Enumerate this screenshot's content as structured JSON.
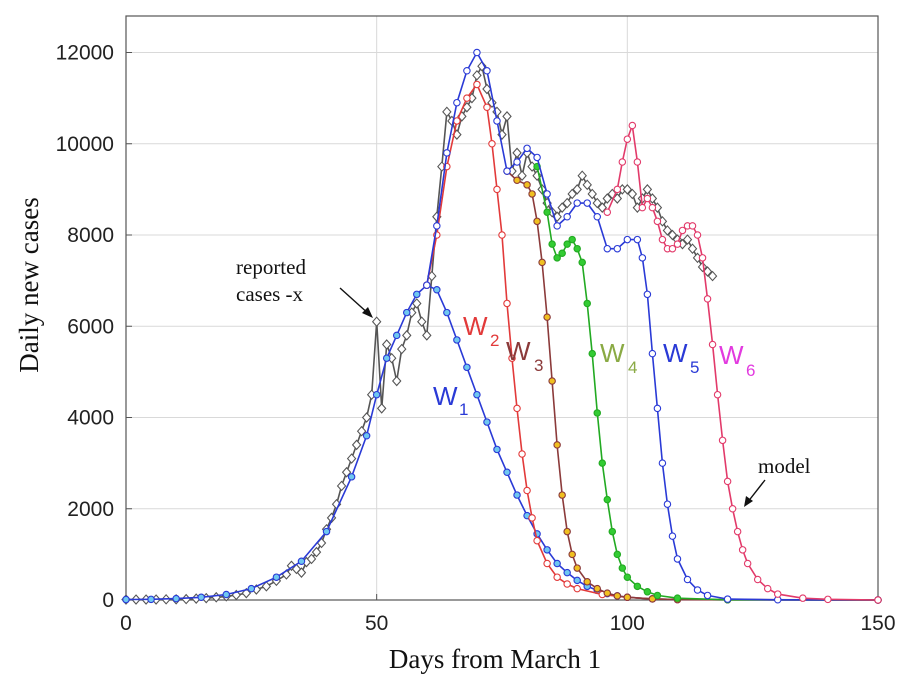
{
  "chart_data": {
    "type": "line",
    "title": "",
    "xlabel": "Days from March 1",
    "ylabel": "Daily new cases",
    "xlim": [
      0,
      150
    ],
    "ylim": [
      0,
      12800
    ],
    "xticks": [
      0,
      50,
      100,
      150
    ],
    "yticks": [
      0,
      2000,
      4000,
      6000,
      8000,
      10000,
      12000
    ],
    "grid": true,
    "colors": {
      "W1": "#2a3ad6",
      "W2": "#e23a3a",
      "W3": "#8b3a3a",
      "W4": "#22aa22",
      "W5": "#2a3ad6",
      "W6": "#e23a6a",
      "reported": "#555555",
      "grid": "#d9d9d9",
      "axis": "#555555"
    },
    "reported": {
      "marker": "diamond",
      "points": [
        [
          0,
          10
        ],
        [
          2,
          10
        ],
        [
          4,
          10
        ],
        [
          6,
          10
        ],
        [
          8,
          15
        ],
        [
          10,
          15
        ],
        [
          12,
          20
        ],
        [
          14,
          30
        ],
        [
          16,
          40
        ],
        [
          18,
          60
        ],
        [
          20,
          80
        ],
        [
          22,
          110
        ],
        [
          24,
          150
        ],
        [
          26,
          230
        ],
        [
          28,
          300
        ],
        [
          30,
          420
        ],
        [
          32,
          560
        ],
        [
          33,
          750
        ],
        [
          34,
          680
        ],
        [
          35,
          600
        ],
        [
          36,
          830
        ],
        [
          37,
          900
        ],
        [
          38,
          1050
        ],
        [
          39,
          1250
        ],
        [
          40,
          1550
        ],
        [
          41,
          1800
        ],
        [
          42,
          2100
        ],
        [
          43,
          2500
        ],
        [
          44,
          2800
        ],
        [
          45,
          3100
        ],
        [
          46,
          3400
        ],
        [
          47,
          3700
        ],
        [
          48,
          4000
        ],
        [
          49,
          4500
        ],
        [
          50,
          6100
        ],
        [
          51,
          4200
        ],
        [
          52,
          5600
        ],
        [
          53,
          5300
        ],
        [
          54,
          4800
        ],
        [
          55,
          5500
        ],
        [
          56,
          5800
        ],
        [
          57,
          6300
        ],
        [
          58,
          6500
        ],
        [
          59,
          6100
        ],
        [
          60,
          5800
        ],
        [
          61,
          7100
        ],
        [
          62,
          8400
        ],
        [
          63,
          9500
        ],
        [
          64,
          10700
        ],
        [
          65,
          10500
        ],
        [
          66,
          10200
        ],
        [
          67,
          10600
        ],
        [
          68,
          10800
        ],
        [
          69,
          11000
        ],
        [
          70,
          11500
        ],
        [
          71,
          11700
        ],
        [
          72,
          11200
        ],
        [
          73,
          10900
        ],
        [
          74,
          10700
        ],
        [
          75,
          10200
        ],
        [
          76,
          10600
        ],
        [
          77,
          9400
        ],
        [
          78,
          9800
        ],
        [
          79,
          9300
        ],
        [
          80,
          9800
        ],
        [
          81,
          9500
        ],
        [
          82,
          9300
        ],
        [
          83,
          9000
        ],
        [
          84,
          8700
        ],
        [
          85,
          8500
        ],
        [
          86,
          8400
        ],
        [
          87,
          8600
        ],
        [
          88,
          8700
        ],
        [
          89,
          8900
        ],
        [
          90,
          9000
        ],
        [
          91,
          9300
        ],
        [
          92,
          9100
        ],
        [
          93,
          8900
        ],
        [
          94,
          8700
        ],
        [
          95,
          8600
        ],
        [
          96,
          8800
        ],
        [
          97,
          8900
        ],
        [
          98,
          8800
        ],
        [
          99,
          9000
        ],
        [
          100,
          9000
        ],
        [
          101,
          8900
        ],
        [
          102,
          8600
        ],
        [
          103,
          8800
        ],
        [
          104,
          9000
        ],
        [
          105,
          8800
        ],
        [
          106,
          8600
        ],
        [
          107,
          8300
        ],
        [
          108,
          8100
        ],
        [
          109,
          8000
        ],
        [
          110,
          7900
        ],
        [
          111,
          7800
        ],
        [
          112,
          7900
        ],
        [
          113,
          7700
        ],
        [
          114,
          7500
        ],
        [
          115,
          7300
        ],
        [
          116,
          7200
        ],
        [
          117,
          7100
        ]
      ]
    },
    "series": [
      {
        "name": "W1",
        "points": [
          [
            0,
            10
          ],
          [
            5,
            15
          ],
          [
            10,
            30
          ],
          [
            15,
            60
          ],
          [
            20,
            120
          ],
          [
            25,
            250
          ],
          [
            30,
            500
          ],
          [
            35,
            850
          ],
          [
            40,
            1500
          ],
          [
            45,
            2700
          ],
          [
            48,
            3600
          ],
          [
            50,
            4500
          ],
          [
            52,
            5300
          ],
          [
            54,
            5800
          ],
          [
            56,
            6300
          ],
          [
            58,
            6700
          ],
          [
            60,
            6900
          ],
          [
            62,
            6800
          ],
          [
            64,
            6300
          ],
          [
            66,
            5700
          ],
          [
            68,
            5100
          ],
          [
            70,
            4500
          ],
          [
            72,
            3900
          ],
          [
            74,
            3300
          ],
          [
            76,
            2800
          ],
          [
            78,
            2300
          ],
          [
            80,
            1850
          ],
          [
            82,
            1450
          ],
          [
            84,
            1100
          ],
          [
            86,
            800
          ],
          [
            88,
            600
          ],
          [
            90,
            430
          ],
          [
            92,
            300
          ],
          [
            94,
            210
          ],
          [
            96,
            140
          ],
          [
            98,
            90
          ],
          [
            100,
            60
          ],
          [
            105,
            25
          ],
          [
            110,
            10
          ],
          [
            120,
            5
          ],
          [
            150,
            0
          ]
        ]
      },
      {
        "name": "W2",
        "points": [
          [
            60,
            6900
          ],
          [
            62,
            8000
          ],
          [
            64,
            9500
          ],
          [
            66,
            10500
          ],
          [
            68,
            11000
          ],
          [
            70,
            11300
          ],
          [
            72,
            10800
          ],
          [
            73,
            10000
          ],
          [
            74,
            9000
          ],
          [
            75,
            8000
          ],
          [
            76,
            6500
          ],
          [
            77,
            5300
          ],
          [
            78,
            4200
          ],
          [
            79,
            3200
          ],
          [
            80,
            2400
          ],
          [
            81,
            1800
          ],
          [
            82,
            1300
          ],
          [
            84,
            800
          ],
          [
            86,
            500
          ],
          [
            88,
            350
          ],
          [
            90,
            250
          ],
          [
            95,
            120
          ],
          [
            100,
            60
          ],
          [
            105,
            25
          ],
          [
            110,
            10
          ],
          [
            120,
            5
          ],
          [
            150,
            0
          ]
        ]
      },
      {
        "name": "W3",
        "points": [
          [
            76,
            9400
          ],
          [
            78,
            9200
          ],
          [
            80,
            9100
          ],
          [
            81,
            8900
          ],
          [
            82,
            8300
          ],
          [
            83,
            7400
          ],
          [
            84,
            6200
          ],
          [
            85,
            4800
          ],
          [
            86,
            3400
          ],
          [
            87,
            2300
          ],
          [
            88,
            1500
          ],
          [
            89,
            1000
          ],
          [
            90,
            700
          ],
          [
            92,
            400
          ],
          [
            94,
            250
          ],
          [
            96,
            150
          ],
          [
            98,
            90
          ],
          [
            100,
            60
          ],
          [
            105,
            25
          ],
          [
            110,
            10
          ],
          [
            150,
            0
          ]
        ]
      },
      {
        "name": "W4",
        "points": [
          [
            82,
            9500
          ],
          [
            84,
            8500
          ],
          [
            85,
            7800
          ],
          [
            86,
            7500
          ],
          [
            87,
            7600
          ],
          [
            88,
            7800
          ],
          [
            89,
            7900
          ],
          [
            90,
            7700
          ],
          [
            91,
            7400
          ],
          [
            92,
            6500
          ],
          [
            93,
            5400
          ],
          [
            94,
            4100
          ],
          [
            95,
            3000
          ],
          [
            96,
            2200
          ],
          [
            97,
            1500
          ],
          [
            98,
            1000
          ],
          [
            99,
            700
          ],
          [
            100,
            500
          ],
          [
            102,
            300
          ],
          [
            104,
            180
          ],
          [
            106,
            100
          ],
          [
            110,
            40
          ],
          [
            120,
            5
          ],
          [
            150,
            0
          ]
        ]
      },
      {
        "name": "W5",
        "points": [
          [
            60,
            6900
          ],
          [
            62,
            8200
          ],
          [
            64,
            9800
          ],
          [
            66,
            10900
          ],
          [
            68,
            11600
          ],
          [
            70,
            12000
          ],
          [
            72,
            11600
          ],
          [
            74,
            10500
          ],
          [
            76,
            9400
          ],
          [
            78,
            9600
          ],
          [
            80,
            9900
          ],
          [
            82,
            9700
          ],
          [
            84,
            8900
          ],
          [
            86,
            8200
          ],
          [
            88,
            8400
          ],
          [
            90,
            8700
          ],
          [
            92,
            8700
          ],
          [
            94,
            8400
          ],
          [
            96,
            7700
          ],
          [
            98,
            7700
          ],
          [
            100,
            7900
          ],
          [
            102,
            7900
          ],
          [
            103,
            7500
          ],
          [
            104,
            6700
          ],
          [
            105,
            5400
          ],
          [
            106,
            4200
          ],
          [
            107,
            3000
          ],
          [
            108,
            2100
          ],
          [
            109,
            1400
          ],
          [
            110,
            900
          ],
          [
            112,
            450
          ],
          [
            114,
            220
          ],
          [
            116,
            100
          ],
          [
            120,
            20
          ],
          [
            130,
            5
          ],
          [
            150,
            0
          ]
        ]
      },
      {
        "name": "W6",
        "points": [
          [
            96,
            8500
          ],
          [
            98,
            9000
          ],
          [
            99,
            9600
          ],
          [
            100,
            10100
          ],
          [
            101,
            10400
          ],
          [
            102,
            9600
          ],
          [
            103,
            8600
          ],
          [
            104,
            8800
          ],
          [
            105,
            8600
          ],
          [
            106,
            8300
          ],
          [
            107,
            7900
          ],
          [
            108,
            7700
          ],
          [
            109,
            7700
          ],
          [
            110,
            7800
          ],
          [
            111,
            8100
          ],
          [
            112,
            8200
          ],
          [
            113,
            8200
          ],
          [
            114,
            8000
          ],
          [
            115,
            7500
          ],
          [
            116,
            6600
          ],
          [
            117,
            5600
          ],
          [
            118,
            4500
          ],
          [
            119,
            3500
          ],
          [
            120,
            2600
          ],
          [
            121,
            2000
          ],
          [
            122,
            1500
          ],
          [
            123,
            1100
          ],
          [
            124,
            800
          ],
          [
            126,
            450
          ],
          [
            128,
            250
          ],
          [
            130,
            130
          ],
          [
            135,
            40
          ],
          [
            140,
            15
          ],
          [
            150,
            0
          ]
        ]
      }
    ],
    "annotations": {
      "reported_line1": "reported",
      "reported_line2": "cases -x",
      "model": "model"
    },
    "series_labels": [
      {
        "letter": "W",
        "sub": "1"
      },
      {
        "letter": "W",
        "sub": "2"
      },
      {
        "letter": "W",
        "sub": "3"
      },
      {
        "letter": "W",
        "sub": "4"
      },
      {
        "letter": "W",
        "sub": "5"
      },
      {
        "letter": "W",
        "sub": "6"
      }
    ]
  }
}
